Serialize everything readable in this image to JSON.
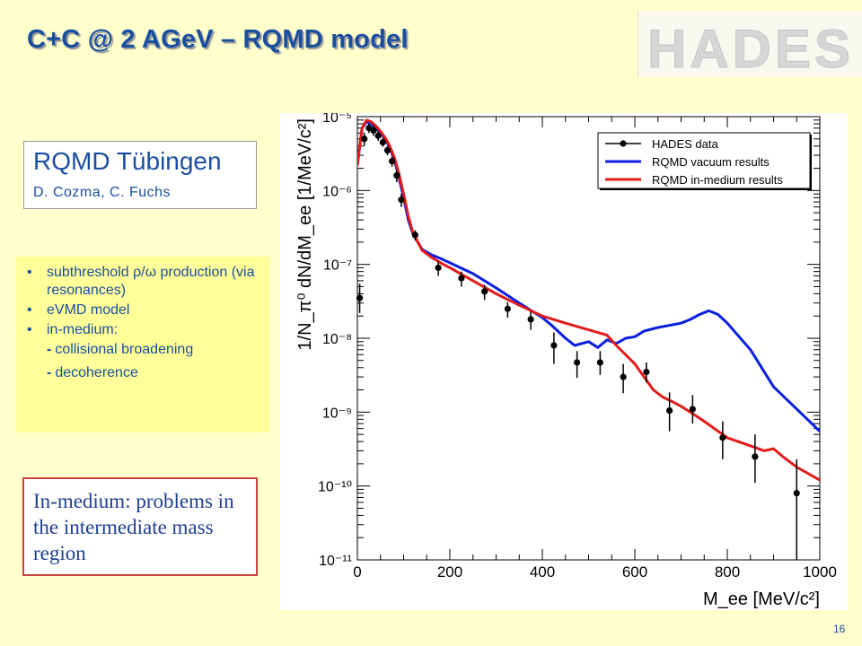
{
  "slide": {
    "title": "C+C @ 2 AGeV – RQMD model",
    "logo_text": "HADES",
    "page_number": "16"
  },
  "credit": {
    "title": "RQMD Tübingen",
    "authors": "D. Cozma,  C. Fuchs"
  },
  "bullets": {
    "item1": "subthreshold ρ/ω production (via resonances)",
    "item2": "eVMD model",
    "item3": "in-medium:",
    "sub1": "collisional broadening",
    "sub2": "decoherence"
  },
  "problem_note": "In-medium: problems in the intermediate mass region",
  "colors": {
    "title_blue": "#1A4FA0",
    "vacuum_line": "#0A1FE0",
    "inmedium_line": "#E21B1B",
    "data_points": "#000000",
    "note_border": "#C8413C"
  },
  "chart_data": {
    "type": "scatter",
    "xlabel": "M_ee  [MeV/c²]",
    "ylabel": "1/N_π⁰ dN/dM_ee  [1/MeV/c²]",
    "xlim": [
      0,
      1000
    ],
    "ylim": [
      1e-11,
      1e-05
    ],
    "yscale": "log",
    "x_ticks": [
      "0",
      "200",
      "400",
      "600",
      "800",
      "1000"
    ],
    "y_ticks": [
      "10⁻¹¹",
      "10⁻¹⁰",
      "10⁻⁹",
      "10⁻⁸",
      "10⁻⁷",
      "10⁻⁶",
      "10⁻⁵"
    ],
    "legend_position": "top-right",
    "grid": false,
    "series": [
      {
        "name": "HADES data",
        "kind": "points",
        "x": [
          5,
          15,
          25,
          35,
          45,
          55,
          65,
          75,
          85,
          95,
          125,
          175,
          225,
          275,
          325,
          375,
          425,
          475,
          525,
          575,
          625,
          675,
          725,
          790,
          860,
          950
        ],
        "y": [
          3.5e-08,
          5e-06,
          7e-06,
          6.5e-06,
          5.5e-06,
          4.5e-06,
          3.5e-06,
          2.5e-06,
          1.6e-06,
          7.5e-07,
          2.5e-07,
          9e-08,
          6.5e-08,
          4.3e-08,
          2.5e-08,
          1.8e-08,
          8e-09,
          4.7e-09,
          4.7e-09,
          3e-09,
          3.5e-09,
          1.05e-09,
          1.1e-09,
          4.5e-10,
          2.5e-10,
          8e-11
        ],
        "yerr_low": [
          1.3e-08,
          1e-06,
          1e-06,
          1e-06,
          8e-07,
          6e-07,
          5e-07,
          4e-07,
          3e-07,
          1.5e-07,
          4e-08,
          2e-08,
          1.5e-08,
          1e-08,
          6e-09,
          5e-09,
          3.5e-09,
          1.8e-09,
          1.5e-09,
          1.2e-09,
          1e-09,
          5e-10,
          4e-10,
          2.2e-10,
          1.4e-10,
          7.5e-11
        ],
        "yerr_high": [
          2e-08,
          1e-06,
          1e-06,
          1e-06,
          8e-07,
          6e-07,
          5e-07,
          4e-07,
          3e-07,
          1.5e-07,
          4e-08,
          2e-08,
          1.5e-08,
          1e-08,
          6e-09,
          5e-09,
          4e-09,
          2e-09,
          2e-09,
          1.5e-09,
          1.2e-09,
          8e-10,
          6e-10,
          3e-10,
          2.5e-10,
          1.5e-10
        ]
      },
      {
        "name": "RQMD vacuum results",
        "kind": "line",
        "x": [
          0,
          10,
          20,
          30,
          40,
          50,
          60,
          70,
          80,
          90,
          100,
          110,
          120,
          140,
          160,
          180,
          200,
          250,
          300,
          350,
          400,
          420,
          450,
          470,
          500,
          520,
          540,
          560,
          580,
          600,
          620,
          650,
          700,
          720,
          740,
          760,
          780,
          800,
          850,
          900,
          1000
        ],
        "y": [
          2.2e-06,
          7e-06,
          8.5e-06,
          8e-06,
          7e-06,
          6e-06,
          5e-06,
          3.8e-06,
          2.6e-06,
          1.5e-06,
          8e-07,
          4e-07,
          2.6e-07,
          1.6e-07,
          1.35e-07,
          1.2e-07,
          1.05e-07,
          7.5e-08,
          4.8e-08,
          3e-08,
          1.9e-08,
          1.5e-08,
          1e-08,
          8e-09,
          9e-09,
          7.5e-09,
          9.5e-09,
          8.5e-09,
          1e-08,
          1.05e-08,
          1.25e-08,
          1.4e-08,
          1.6e-08,
          1.8e-08,
          2.1e-08,
          2.35e-08,
          2.1e-08,
          1.6e-08,
          7e-09,
          2.2e-09,
          5.5e-10
        ]
      },
      {
        "name": "RQMD in-medium results",
        "kind": "line",
        "x": [
          0,
          10,
          20,
          30,
          40,
          50,
          60,
          70,
          80,
          90,
          100,
          110,
          120,
          140,
          160,
          180,
          200,
          250,
          300,
          350,
          400,
          450,
          500,
          540,
          560,
          580,
          600,
          620,
          640,
          660,
          680,
          700,
          720,
          750,
          800,
          850,
          880,
          900,
          920,
          950,
          1000
        ],
        "y": [
          2.2e-06,
          7e-06,
          9e-06,
          8.5e-06,
          7.5e-06,
          6.3e-06,
          5.2e-06,
          4e-06,
          2.8e-06,
          1.7e-06,
          9e-07,
          4.5e-07,
          2.7e-07,
          1.55e-07,
          1.25e-07,
          1.05e-07,
          9e-08,
          6e-08,
          4e-08,
          2.8e-08,
          2e-08,
          1.6e-08,
          1.3e-08,
          1.1e-08,
          8e-09,
          6e-09,
          4.5e-09,
          3e-09,
          2e-09,
          1.6e-09,
          1.4e-09,
          1.2e-09,
          1e-09,
          7.5e-10,
          4.5e-10,
          3.5e-10,
          3e-10,
          3.2e-10,
          2.5e-10,
          1.8e-10,
          1.2e-10
        ]
      }
    ]
  }
}
